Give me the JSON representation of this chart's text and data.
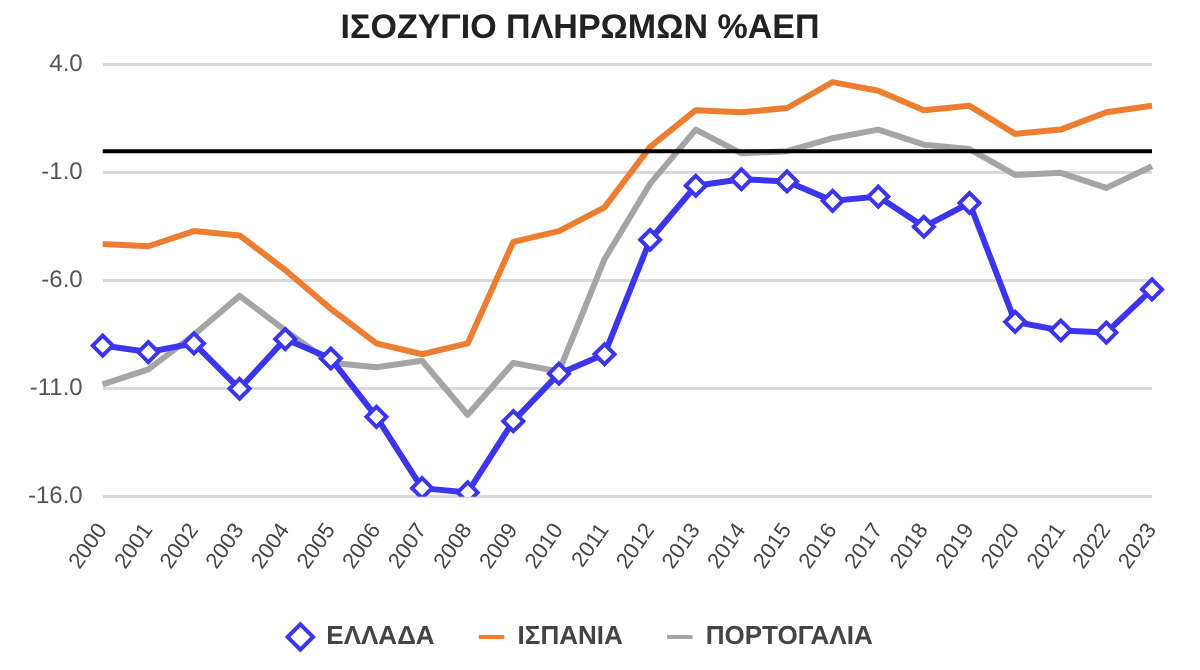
{
  "chart_data": {
    "type": "line",
    "title": "ΙΣΟΖΥΓΙΟ ΠΛΗΡΩΜΩΝ %ΑΕΠ",
    "categories": [
      "2000",
      "2001",
      "2002",
      "2003",
      "2004",
      "2005",
      "2006",
      "2007",
      "2008",
      "2009",
      "2010",
      "2011",
      "2012",
      "2013",
      "2014",
      "2015",
      "2016",
      "2017",
      "2018",
      "2019",
      "2020",
      "2021",
      "2022",
      "2023"
    ],
    "series": [
      {
        "name": "ΕΛΛΑΔΑ",
        "color": "#3c35f0",
        "marker": "diamond",
        "values": [
          -9.0,
          -9.3,
          -8.9,
          -11.0,
          -8.7,
          -9.6,
          -12.3,
          -15.6,
          -15.8,
          -12.5,
          -10.3,
          -9.4,
          -4.1,
          -1.6,
          -1.3,
          -1.4,
          -2.3,
          -2.1,
          -3.5,
          -2.4,
          -7.9,
          -8.3,
          -8.4,
          -6.4
        ]
      },
      {
        "name": "ΙΣΠΑΝΙΑ",
        "color": "#ed7d31",
        "marker": "none",
        "values": [
          -4.3,
          -4.4,
          -3.7,
          -3.9,
          -5.5,
          -7.3,
          -8.9,
          -9.4,
          -8.9,
          -4.2,
          -3.7,
          -2.6,
          0.2,
          1.9,
          1.8,
          2.0,
          3.2,
          2.8,
          1.9,
          2.1,
          0.8,
          1.0,
          1.8,
          2.1
        ]
      },
      {
        "name": "ΠΟΡΤΟΓΑΛΙΑ",
        "color": "#a5a5a5",
        "marker": "none",
        "values": [
          -10.8,
          -10.1,
          -8.5,
          -6.7,
          -8.3,
          -9.8,
          -10.0,
          -9.7,
          -12.2,
          -9.8,
          -10.2,
          -5.0,
          -1.5,
          1.0,
          -0.1,
          0.0,
          0.6,
          1.0,
          0.3,
          0.1,
          -1.1,
          -1.0,
          -1.7,
          -0.7
        ]
      }
    ],
    "ylim": [
      -16,
      4
    ],
    "yticks": [
      {
        "value": -16,
        "label": "-16.0"
      },
      {
        "value": -11,
        "label": "-11.0"
      },
      {
        "value": -6,
        "label": "-6.0"
      },
      {
        "value": -1,
        "label": "-1.0"
      },
      {
        "value": 4,
        "label": "4.0"
      }
    ],
    "ref_lines": [
      {
        "axis": "y",
        "value": 0,
        "color": "#000000"
      }
    ],
    "grid": "y",
    "legend": "bottom",
    "line_style": "solid"
  }
}
